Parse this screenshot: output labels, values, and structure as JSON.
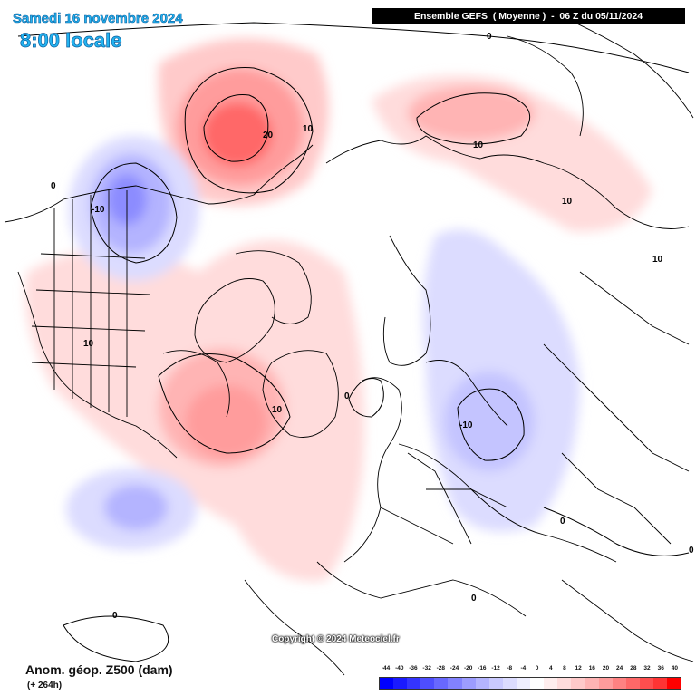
{
  "header": {
    "date": "Samedi 16 novembre 2024",
    "local_time": "8:00 locale",
    "run_info": "Ensemble GEFS  ( Moyenne )  -  06 Z du 05/11/2024"
  },
  "footer": {
    "variable": "Anom. géop. Z500 (dam)",
    "lead_time": "(+ 264h)",
    "copyright": "Copyright © 2024 Meteociel.fr"
  },
  "contour_labels": [
    "0",
    "0",
    "10",
    "20",
    "10",
    "10",
    "10",
    "0",
    "10",
    "-10",
    "10",
    "0",
    "-10",
    "0",
    "0",
    "0"
  ],
  "colorbar": {
    "ticks": [
      "-44",
      "-40",
      "-36",
      "-32",
      "-28",
      "-24",
      "-20",
      "-16",
      "-12",
      "-8",
      "-4",
      "0",
      "4",
      "8",
      "12",
      "16",
      "20",
      "24",
      "28",
      "32",
      "36",
      "40"
    ],
    "colors": [
      "#0000ff",
      "#1a1aff",
      "#3434ff",
      "#4e4eff",
      "#6868ff",
      "#8282ff",
      "#9c9cff",
      "#b4b4ff",
      "#cacaff",
      "#dcdcff",
      "#eeeeff",
      "#ffffff",
      "#ffeeee",
      "#ffdcdc",
      "#ffcaca",
      "#ffb4b4",
      "#ff9c9c",
      "#ff8282",
      "#ff6868",
      "#ff4e4e",
      "#ff3434",
      "#ff0000"
    ]
  },
  "anomaly_fields": [
    {
      "label": "20",
      "kind": "positive",
      "value": 22
    },
    {
      "label": "10",
      "kind": "positive",
      "value": 14
    },
    {
      "label": "10",
      "kind": "positive",
      "value": 14
    },
    {
      "label": "-10",
      "kind": "negative",
      "value": -12
    },
    {
      "label": "-10",
      "kind": "negative",
      "value": -11
    }
  ]
}
